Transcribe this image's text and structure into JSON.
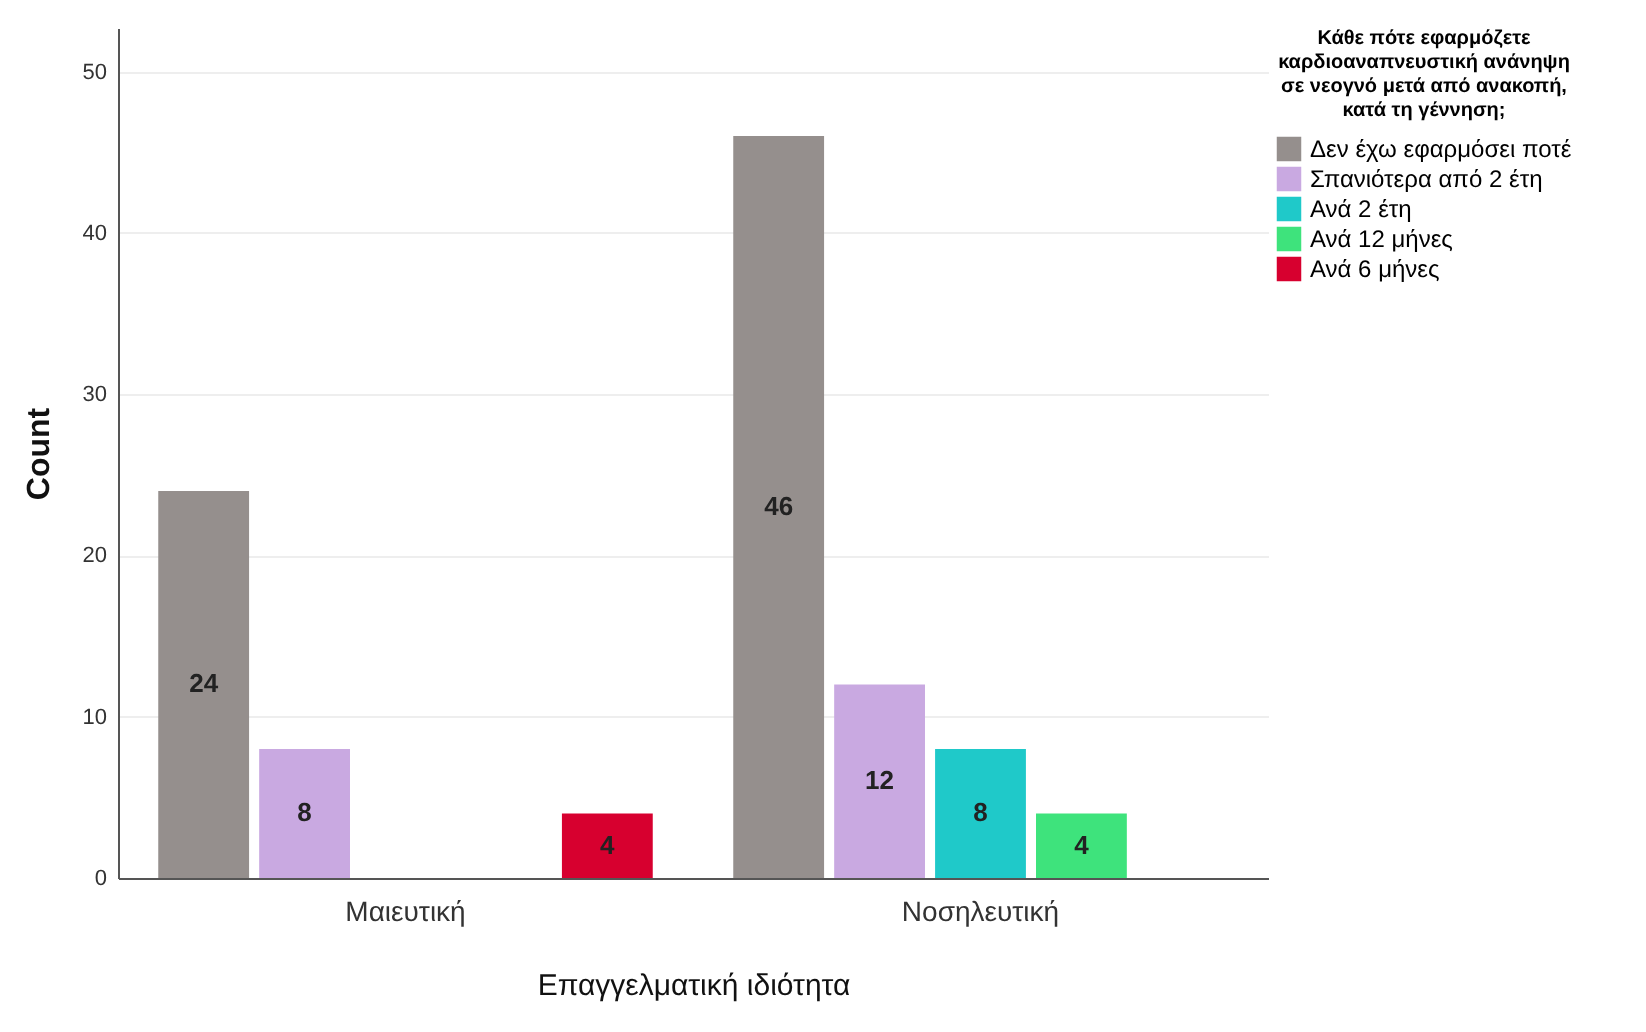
{
  "chart_data": {
    "type": "bar",
    "xlabel": "Επαγγελματική ιδιότητα",
    "ylabel": "Count",
    "legend_title": "Κάθε πότε εφαρμόζετε καρδιοαναπνευστική ανάνηψη σε νεογνό μετά από ανακοπή, κατά τη γέννηση;",
    "categories": [
      "Μαιευτική",
      "Νοσηλευτική"
    ],
    "series": [
      {
        "name": "Δεν έχω εφαρμόσει ποτέ",
        "color": "#958f8d",
        "values": [
          24,
          46
        ]
      },
      {
        "name": "Σπανιότερα από 2 έτη",
        "color": "#c9a9e1",
        "values": [
          8,
          12
        ]
      },
      {
        "name": "Ανά 2 έτη",
        "color": "#1fc9c9",
        "values": [
          null,
          8
        ]
      },
      {
        "name": "Ανά 12 μήνες",
        "color": "#3ee37c",
        "values": [
          null,
          4
        ]
      },
      {
        "name": "Ανά 6 μήνες",
        "color": "#d7002f",
        "values": [
          4,
          null
        ]
      }
    ],
    "ylim": [
      0,
      52.7
    ],
    "yticks": [
      0,
      10,
      20,
      30,
      40,
      50
    ],
    "grid": "y",
    "legend": "top right",
    "data_labels": true
  }
}
